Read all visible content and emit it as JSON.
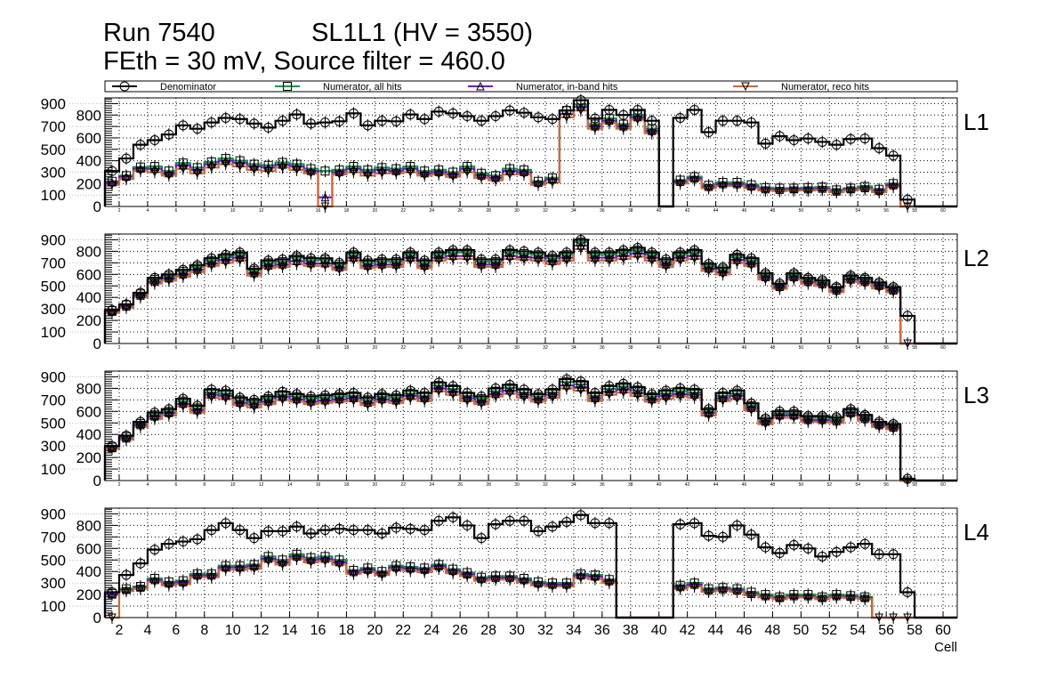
{
  "chart_data": {
    "type": "histogram-step",
    "title_line1_left": "Run 7540",
    "title_line1_right": "SL1L1 (HV = 3550)",
    "title_line2": "FEth = 30 mV, Source filter = 460.0",
    "xlabel": "Cell",
    "xlim": [
      1,
      61
    ],
    "ylim": [
      0,
      950
    ],
    "y_ticks": [
      0,
      100,
      200,
      300,
      400,
      500,
      600,
      700,
      800,
      900
    ],
    "x_ticks": [
      2,
      4,
      6,
      8,
      10,
      12,
      14,
      16,
      18,
      20,
      22,
      24,
      26,
      28,
      30,
      32,
      34,
      36,
      38,
      40,
      42,
      44,
      46,
      48,
      50,
      52,
      54,
      56,
      58,
      60
    ],
    "grid": true,
    "legend_placement": "top",
    "legend": [
      {
        "name": "Denominator",
        "color": "#000000",
        "marker": "circle"
      },
      {
        "name": "Numerator, all hits",
        "color": "#00a040",
        "marker": "square"
      },
      {
        "name": "Numerator, in-band hits",
        "color": "#7010e0",
        "marker": "triangle-up"
      },
      {
        "name": "Numerator, reco hits",
        "color": "#d06a30",
        "marker": "triangle-down"
      }
    ],
    "bins_first_cell": 1,
    "panels": [
      {
        "label": "L1",
        "denominator": [
          310,
          420,
          540,
          580,
          630,
          710,
          680,
          735,
          775,
          765,
          725,
          690,
          750,
          805,
          725,
          735,
          745,
          815,
          710,
          750,
          745,
          805,
          765,
          830,
          815,
          790,
          750,
          790,
          840,
          820,
          780,
          765,
          840,
          930,
          770,
          845,
          800,
          845,
          750,
          0,
          775,
          845,
          650,
          750,
          750,
          735,
          550,
          615,
          580,
          595,
          565,
          540,
          590,
          595,
          510,
          445,
          60,
          0,
          0,
          0
        ],
        "all": [
          220,
          270,
          345,
          350,
          310,
          380,
          340,
          390,
          420,
          400,
          370,
          360,
          385,
          370,
          330,
          310,
          320,
          350,
          320,
          340,
          330,
          350,
          310,
          320,
          300,
          350,
          290,
          270,
          330,
          320,
          220,
          250,
          840,
          890,
          720,
          770,
          720,
          800,
          680,
          0,
          230,
          260,
          185,
          210,
          210,
          190,
          165,
          160,
          160,
          165,
          170,
          145,
          160,
          175,
          150,
          200,
          0,
          0,
          0,
          0
        ],
        "inband": [
          210,
          260,
          330,
          330,
          290,
          360,
          320,
          370,
          400,
          380,
          350,
          340,
          365,
          350,
          310,
          80,
          300,
          330,
          300,
          320,
          310,
          330,
          290,
          300,
          280,
          330,
          270,
          250,
          310,
          300,
          205,
          235,
          810,
          870,
          700,
          750,
          700,
          780,
          660,
          0,
          215,
          245,
          170,
          195,
          195,
          175,
          150,
          145,
          150,
          150,
          155,
          130,
          150,
          160,
          135,
          185,
          0,
          0,
          0,
          0
        ],
        "reco": [
          190,
          240,
          310,
          300,
          270,
          330,
          290,
          340,
          370,
          350,
          320,
          310,
          340,
          320,
          290,
          0,
          280,
          300,
          270,
          290,
          290,
          300,
          270,
          280,
          260,
          300,
          250,
          230,
          280,
          280,
          190,
          210,
          780,
          840,
          680,
          730,
          680,
          760,
          640,
          0,
          200,
          230,
          160,
          180,
          180,
          160,
          140,
          135,
          140,
          140,
          145,
          125,
          140,
          150,
          125,
          170,
          0,
          0,
          0,
          0
        ]
      },
      {
        "label": "L2",
        "denominator": [
          290,
          340,
          440,
          570,
          600,
          640,
          680,
          740,
          770,
          790,
          650,
          720,
          730,
          760,
          740,
          740,
          700,
          790,
          720,
          730,
          730,
          790,
          720,
          790,
          810,
          810,
          730,
          730,
          810,
          800,
          790,
          760,
          790,
          900,
          790,
          790,
          810,
          830,
          790,
          730,
          790,
          810,
          690,
          660,
          770,
          740,
          610,
          520,
          610,
          570,
          550,
          490,
          590,
          570,
          530,
          490,
          240,
          0,
          0,
          0
        ],
        "all": [
          285,
          335,
          430,
          555,
          585,
          625,
          665,
          720,
          750,
          770,
          635,
          700,
          710,
          745,
          720,
          725,
          685,
          770,
          700,
          710,
          710,
          770,
          700,
          770,
          790,
          790,
          710,
          710,
          790,
          780,
          770,
          740,
          770,
          880,
          770,
          770,
          790,
          810,
          770,
          710,
          770,
          790,
          670,
          645,
          750,
          720,
          595,
          505,
          595,
          555,
          535,
          480,
          575,
          555,
          515,
          475,
          0,
          0,
          0,
          0
        ],
        "inband": [
          275,
          320,
          415,
          535,
          565,
          600,
          640,
          695,
          725,
          745,
          610,
          675,
          685,
          715,
          695,
          695,
          660,
          745,
          675,
          685,
          685,
          745,
          675,
          745,
          760,
          760,
          685,
          685,
          760,
          750,
          745,
          715,
          745,
          850,
          745,
          745,
          760,
          780,
          745,
          685,
          745,
          760,
          650,
          620,
          725,
          695,
          575,
          490,
          575,
          535,
          515,
          460,
          555,
          535,
          500,
          460,
          0,
          0,
          0,
          0
        ],
        "reco": [
          265,
          310,
          400,
          520,
          545,
          580,
          620,
          675,
          700,
          720,
          590,
          655,
          665,
          690,
          675,
          675,
          640,
          720,
          655,
          665,
          665,
          720,
          655,
          720,
          735,
          735,
          665,
          665,
          735,
          730,
          720,
          690,
          720,
          820,
          720,
          720,
          735,
          755,
          720,
          665,
          720,
          735,
          630,
          600,
          700,
          675,
          555,
          475,
          555,
          520,
          500,
          445,
          535,
          520,
          480,
          445,
          0,
          0,
          0,
          0
        ]
      },
      {
        "label": "L3",
        "denominator": [
          300,
          390,
          510,
          590,
          620,
          710,
          650,
          790,
          780,
          720,
          700,
          730,
          770,
          750,
          730,
          740,
          750,
          760,
          720,
          750,
          740,
          780,
          760,
          850,
          820,
          760,
          730,
          800,
          830,
          790,
          750,
          790,
          880,
          860,
          760,
          820,
          840,
          810,
          750,
          780,
          800,
          790,
          620,
          760,
          780,
          670,
          540,
          600,
          600,
          560,
          560,
          550,
          620,
          570,
          510,
          490,
          15,
          0,
          0,
          0
        ],
        "all": [
          290,
          380,
          495,
          570,
          600,
          690,
          630,
          765,
          755,
          700,
          680,
          710,
          745,
          730,
          710,
          720,
          730,
          735,
          700,
          730,
          720,
          755,
          735,
          825,
          795,
          735,
          710,
          775,
          805,
          765,
          730,
          765,
          855,
          835,
          735,
          795,
          815,
          785,
          730,
          755,
          775,
          765,
          600,
          735,
          755,
          650,
          525,
          580,
          580,
          545,
          545,
          535,
          600,
          555,
          495,
          475,
          0,
          0,
          0,
          0
        ],
        "inband": [
          280,
          365,
          480,
          555,
          585,
          665,
          610,
          745,
          735,
          675,
          660,
          685,
          725,
          705,
          685,
          695,
          705,
          715,
          675,
          705,
          695,
          735,
          715,
          800,
          770,
          715,
          685,
          750,
          780,
          745,
          705,
          745,
          825,
          810,
          715,
          770,
          790,
          760,
          705,
          735,
          750,
          745,
          585,
          715,
          735,
          630,
          510,
          565,
          565,
          525,
          525,
          515,
          585,
          535,
          480,
          460,
          0,
          0,
          0,
          0
        ],
        "reco": [
          275,
          355,
          465,
          535,
          565,
          645,
          590,
          720,
          710,
          655,
          635,
          665,
          700,
          685,
          665,
          675,
          685,
          690,
          655,
          685,
          675,
          710,
          690,
          775,
          745,
          690,
          665,
          730,
          755,
          720,
          685,
          720,
          800,
          780,
          690,
          745,
          765,
          735,
          685,
          710,
          730,
          720,
          565,
          690,
          710,
          610,
          490,
          545,
          545,
          510,
          510,
          500,
          565,
          520,
          465,
          445,
          0,
          0,
          0,
          0
        ]
      },
      {
        "label": "L4",
        "denominator": [
          220,
          370,
          470,
          590,
          640,
          660,
          680,
          760,
          820,
          760,
          690,
          750,
          750,
          790,
          730,
          760,
          770,
          760,
          760,
          730,
          780,
          770,
          760,
          840,
          870,
          800,
          690,
          810,
          840,
          840,
          750,
          790,
          830,
          890,
          820,
          820,
          0,
          0,
          0,
          0,
          810,
          820,
          710,
          700,
          800,
          720,
          610,
          560,
          630,
          600,
          530,
          570,
          610,
          640,
          550,
          550,
          220,
          0,
          0,
          0
        ],
        "all": [
          210,
          250,
          270,
          340,
          310,
          320,
          380,
          380,
          450,
          450,
          460,
          530,
          500,
          550,
          520,
          530,
          500,
          410,
          430,
          400,
          450,
          440,
          430,
          460,
          420,
          390,
          350,
          360,
          360,
          340,
          310,
          300,
          300,
          380,
          370,
          330,
          0,
          0,
          0,
          0,
          280,
          300,
          250,
          260,
          250,
          220,
          200,
          180,
          200,
          200,
          180,
          200,
          190,
          180,
          0,
          0,
          0,
          0,
          0,
          0
        ],
        "inband": [
          200,
          240,
          260,
          325,
          295,
          305,
          365,
          365,
          435,
          435,
          445,
          510,
          480,
          530,
          500,
          510,
          480,
          395,
          415,
          385,
          435,
          425,
          415,
          445,
          405,
          375,
          335,
          345,
          345,
          325,
          295,
          285,
          285,
          365,
          355,
          315,
          0,
          0,
          0,
          0,
          265,
          285,
          235,
          245,
          235,
          205,
          185,
          170,
          185,
          185,
          170,
          185,
          180,
          170,
          0,
          0,
          0,
          0,
          0,
          0
        ],
        "reco": [
          0,
          230,
          250,
          310,
          280,
          290,
          350,
          350,
          415,
          415,
          425,
          490,
          460,
          510,
          480,
          490,
          460,
          380,
          395,
          370,
          415,
          405,
          395,
          425,
          385,
          360,
          320,
          330,
          330,
          310,
          280,
          270,
          270,
          345,
          335,
          300,
          0,
          0,
          0,
          0,
          250,
          270,
          225,
          235,
          225,
          195,
          175,
          160,
          175,
          175,
          160,
          175,
          170,
          160,
          0,
          0,
          0,
          0,
          0,
          0
        ]
      }
    ]
  }
}
